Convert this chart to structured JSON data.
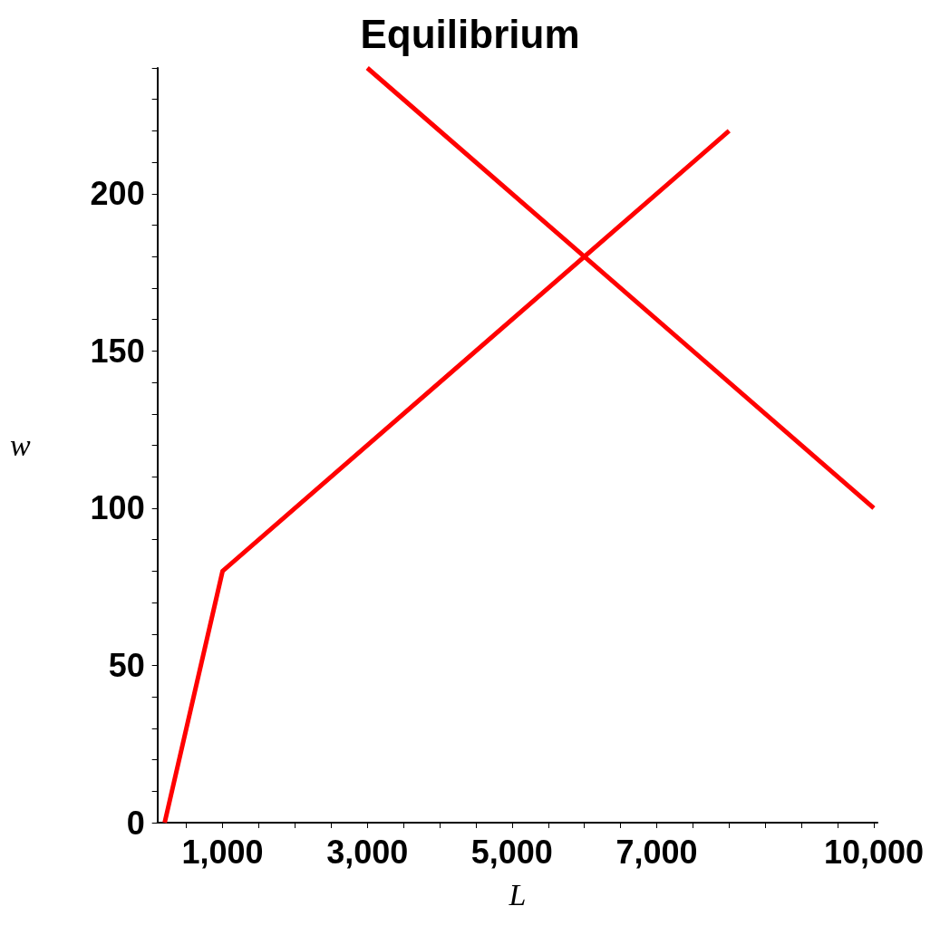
{
  "chart_data": {
    "type": "line",
    "title": "Equilibrium",
    "xlabel": "L",
    "ylabel": "w",
    "xlim": [
      100,
      10050
    ],
    "ylim": [
      0,
      240
    ],
    "xticks": [
      {
        "value": 500,
        "label": null
      },
      {
        "value": 1000,
        "label": "1,000"
      },
      {
        "value": 1500,
        "label": null
      },
      {
        "value": 2000,
        "label": null
      },
      {
        "value": 2500,
        "label": null
      },
      {
        "value": 3000,
        "label": "3,000"
      },
      {
        "value": 3500,
        "label": null
      },
      {
        "value": 4000,
        "label": null
      },
      {
        "value": 4500,
        "label": null
      },
      {
        "value": 5000,
        "label": "5,000"
      },
      {
        "value": 5500,
        "label": null
      },
      {
        "value": 6000,
        "label": null
      },
      {
        "value": 6500,
        "label": null
      },
      {
        "value": 7000,
        "label": "7,000"
      },
      {
        "value": 7500,
        "label": null
      },
      {
        "value": 8000,
        "label": null
      },
      {
        "value": 8500,
        "label": null
      },
      {
        "value": 9000,
        "label": null
      },
      {
        "value": 9500,
        "label": null
      },
      {
        "value": 10000,
        "label": "10,000"
      }
    ],
    "yticks": [
      0,
      {
        "value": 10,
        "label": null
      },
      {
        "value": 20,
        "label": null
      },
      {
        "value": 30,
        "label": null
      },
      {
        "value": 40,
        "label": null
      },
      50,
      {
        "value": 60,
        "label": null
      },
      {
        "value": 70,
        "label": null
      },
      {
        "value": 80,
        "label": null
      },
      {
        "value": 90,
        "label": null
      },
      100,
      {
        "value": 110,
        "label": null
      },
      {
        "value": 120,
        "label": null
      },
      {
        "value": 130,
        "label": null
      },
      {
        "value": 140,
        "label": null
      },
      150,
      {
        "value": 160,
        "label": null
      },
      {
        "value": 170,
        "label": null
      },
      {
        "value": 180,
        "label": null
      },
      {
        "value": 190,
        "label": null
      },
      200,
      {
        "value": 210,
        "label": null
      },
      {
        "value": 220,
        "label": null
      },
      {
        "value": 230,
        "label": null
      },
      {
        "value": 240,
        "label": null
      }
    ],
    "marker": "none",
    "line_style": "solid",
    "series": [
      {
        "color": "#ff0000",
        "x": [
          200,
          1000,
          8000
        ],
        "values": [
          0,
          80,
          220
        ]
      },
      {
        "color": "#ff0000",
        "x": [
          3000,
          10000
        ],
        "values": [
          240,
          100
        ]
      }
    ]
  }
}
